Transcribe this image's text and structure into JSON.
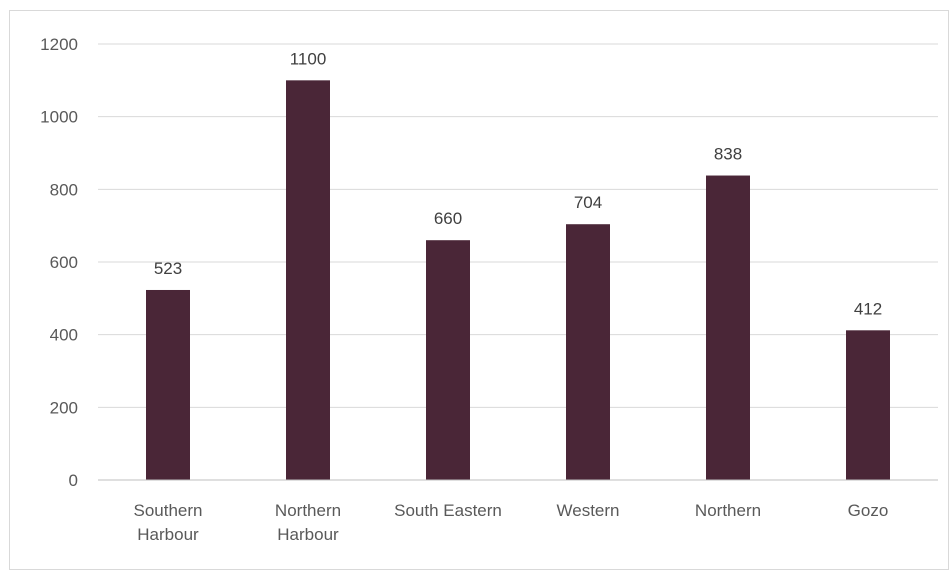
{
  "chart_data": {
    "type": "bar",
    "categories": [
      [
        "Southern",
        "Harbour"
      ],
      [
        "Northern",
        "Harbour"
      ],
      [
        "South Eastern"
      ],
      [
        "Western"
      ],
      [
        "Northern"
      ],
      [
        "Gozo"
      ]
    ],
    "values": [
      523,
      1100,
      660,
      704,
      838,
      412
    ],
    "data_labels": [
      "523",
      "1100",
      "660",
      "704",
      "838",
      "412"
    ],
    "yticks": [
      "0",
      "200",
      "400",
      "600",
      "800",
      "1000",
      "1200"
    ],
    "ylim": [
      0,
      1200
    ],
    "title": "",
    "xlabel": "",
    "ylabel": "",
    "grid": true,
    "legend": "none",
    "colors": {
      "bar": "#4A2637",
      "grid": "#d9d9d9",
      "axis": "#bfbfbf"
    }
  }
}
